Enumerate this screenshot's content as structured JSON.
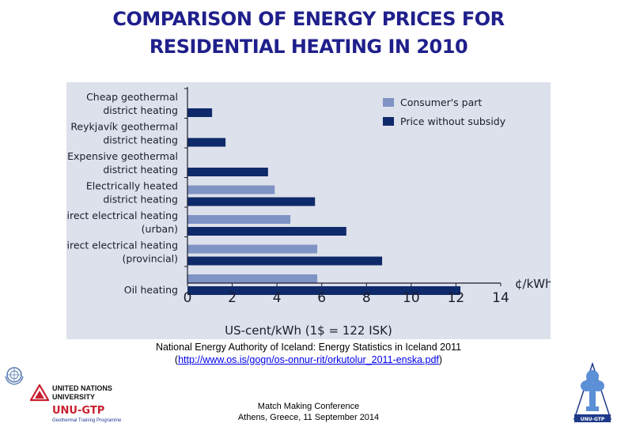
{
  "title_line1": "COMPARISON OF ENERGY PRICES FOR",
  "title_line2": "RESIDENTIAL HEATING IN 2010",
  "chart_data": {
    "type": "bar",
    "orientation": "horizontal",
    "categories": [
      [
        "Cheap geothermal",
        "district heating"
      ],
      [
        "Reykjavík geothermal",
        "district heating"
      ],
      [
        "Expensive geothermal",
        "district heating"
      ],
      [
        "Electrically heated",
        "district heating"
      ],
      [
        "Direct electrical heating",
        "(urban)"
      ],
      [
        "Direct electrical heating",
        "(provincial)"
      ],
      [
        "Oil heating"
      ]
    ],
    "series": [
      {
        "name": "Consumer's part",
        "color": "#7f93c4",
        "values": [
          null,
          null,
          null,
          3.9,
          4.6,
          5.8,
          5.8
        ]
      },
      {
        "name": "Price without subsidy",
        "color": "#0f2a6a",
        "values": [
          1.1,
          1.7,
          3.6,
          5.7,
          7.1,
          8.7,
          12.2
        ]
      }
    ],
    "xlim": [
      0,
      14
    ],
    "xticks": [
      "0",
      "2",
      "4",
      "6",
      "8",
      "10",
      "12",
      "14"
    ],
    "xlabel": "US-cent/kWh  (1$ = 122 ISK)",
    "unit_label": "¢/kWh",
    "legend_position": "top-right",
    "grid": false
  },
  "source_line1": "National Energy Authority of Iceland:  Energy Statistics in Iceland 2011",
  "source_link": "http://www.os.is/gogn/os-onnur-rit/orkutolur_2011-enska.pdf",
  "footer_line1": "Match Making Conference",
  "footer_line2": "Athens, Greece, 11 September 2014",
  "logos": {
    "unu_line1": "UNITED NATIONS",
    "unu_line2": "UNIVERSITY",
    "unugtp_title": "UNU-GTP",
    "unugtp_subtitle": "Geothermal Training Programme",
    "gtp_badge": "UNU-GTP"
  }
}
